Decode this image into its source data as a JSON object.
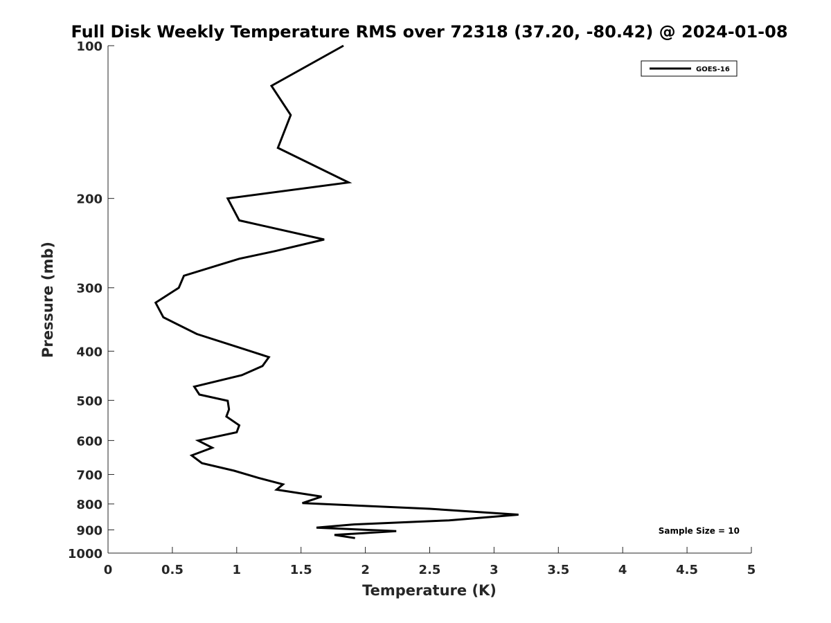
{
  "chart_data": {
    "type": "line",
    "title": "Full Disk Weekly Temperature RMS over 72318 (37.20, -80.42) @ 2024-01-08",
    "xlabel": "Temperature (K)",
    "ylabel": "Pressure (mb)",
    "xlim": [
      0,
      5
    ],
    "ylim": [
      1000,
      100
    ],
    "yscale": "log",
    "yreversed": true,
    "grid": false,
    "legend_position": "top-right",
    "x_ticks": [
      0,
      0.5,
      1,
      1.5,
      2,
      2.5,
      3,
      3.5,
      4,
      4.5,
      5
    ],
    "x_tick_labels": [
      "0",
      "0.5",
      "1",
      "1.5",
      "2",
      "2.5",
      "3",
      "3.5",
      "4",
      "4.5",
      "5"
    ],
    "y_ticks": [
      100,
      200,
      300,
      400,
      500,
      600,
      700,
      800,
      900,
      1000
    ],
    "y_tick_labels": [
      "100",
      "200",
      "300",
      "400",
      "500",
      "600",
      "700",
      "800",
      "900",
      "1000"
    ],
    "annotation": "Sample Size = 10",
    "series": [
      {
        "name": "GOES-16",
        "color": "#000000",
        "points": [
          [
            1.83,
            100
          ],
          [
            1.27,
            120
          ],
          [
            1.42,
            137
          ],
          [
            1.32,
            159
          ],
          [
            1.87,
            186
          ],
          [
            0.93,
            200
          ],
          [
            1.02,
            221
          ],
          [
            1.68,
            241
          ],
          [
            1.3,
            254
          ],
          [
            1.02,
            263
          ],
          [
            0.59,
            284
          ],
          [
            0.55,
            300
          ],
          [
            0.37,
            321
          ],
          [
            0.43,
            343
          ],
          [
            0.69,
            370
          ],
          [
            1.0,
            392
          ],
          [
            1.25,
            411
          ],
          [
            1.2,
            428
          ],
          [
            1.04,
            446
          ],
          [
            0.67,
            470
          ],
          [
            0.71,
            487
          ],
          [
            0.93,
            501
          ],
          [
            0.94,
            521
          ],
          [
            0.92,
            538
          ],
          [
            1.02,
            560
          ],
          [
            1.0,
            578
          ],
          [
            0.7,
            600
          ],
          [
            0.81,
            620
          ],
          [
            0.65,
            642
          ],
          [
            0.73,
            665
          ],
          [
            0.98,
            688
          ],
          [
            1.17,
            711
          ],
          [
            1.36,
            732
          ],
          [
            1.31,
            750
          ],
          [
            1.66,
            774
          ],
          [
            1.51,
            797
          ],
          [
            2.5,
            818
          ],
          [
            3.19,
            840
          ],
          [
            2.65,
            862
          ],
          [
            1.91,
            878
          ],
          [
            1.62,
            891
          ],
          [
            2.24,
            905
          ],
          [
            1.76,
            921
          ],
          [
            1.92,
            934
          ]
        ]
      }
    ]
  }
}
